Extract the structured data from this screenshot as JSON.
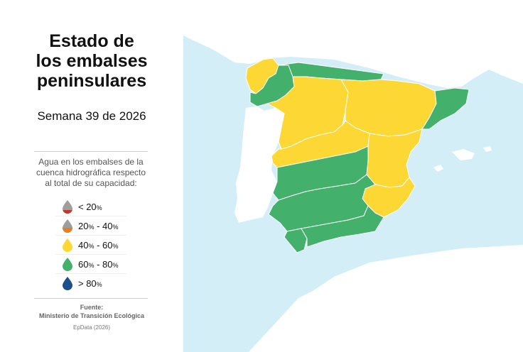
{
  "title": "Estado de\nlos embalses\npeninsulares",
  "subtitle": "Semana 39 de 2026",
  "legend_description": "Agua en los embalses de la cuenca hidrográfica respecto al total de su capacidad:",
  "legend": [
    {
      "main": "< 20",
      "unit": "%",
      "icon": "drop-icon",
      "top_color": "#9e9e9e",
      "bottom_color": "#c0392b",
      "fill_fraction": 0.3
    },
    {
      "main": "20",
      "unit": "%",
      "sep": " - ",
      "main2": "40",
      "unit2": "%",
      "icon": "drop-icon",
      "top_color": "#9e9e9e",
      "bottom_color": "#e67e22",
      "fill_fraction": 0.4
    },
    {
      "main": "40",
      "unit": "%",
      "sep": " - ",
      "main2": "60",
      "unit2": "%",
      "icon": "drop-icon",
      "top_color": "#fdd835",
      "bottom_color": "#fdd835",
      "fill_fraction": 1
    },
    {
      "main": "60",
      "unit": "%",
      "sep": " - ",
      "main2": "80",
      "unit2": "%",
      "icon": "drop-icon",
      "top_color": "#43b06c",
      "bottom_color": "#43b06c",
      "fill_fraction": 1
    },
    {
      "main": "> 80",
      "unit": "%",
      "icon": "drop-icon",
      "top_color": "#1f4e8c",
      "bottom_color": "#1f4e8c",
      "fill_fraction": 1
    }
  ],
  "source_title": "Fuente:",
  "source_name": "Ministerio de Transición Ecológica",
  "credit": "EpData (2026)",
  "colors": {
    "sea": "#d4eef7",
    "land_other": "#ffffff",
    "yellow": "#fdd835",
    "green": "#43b06c"
  },
  "map_regions": [
    {
      "name": "galicia-costa",
      "category": "40-60"
    },
    {
      "name": "mino-sil",
      "category": "60-80"
    },
    {
      "name": "cantabrico",
      "category": "60-80"
    },
    {
      "name": "duero",
      "category": "40-60"
    },
    {
      "name": "ebro",
      "category": "40-60"
    },
    {
      "name": "cataluna-interior",
      "category": "60-80"
    },
    {
      "name": "tajo",
      "category": "40-60"
    },
    {
      "name": "jucar",
      "category": "40-60"
    },
    {
      "name": "segura",
      "category": "40-60"
    },
    {
      "name": "guadiana",
      "category": "60-80"
    },
    {
      "name": "guadalquivir",
      "category": "60-80"
    },
    {
      "name": "andalucia-atlantica",
      "category": "60-80"
    },
    {
      "name": "andalucia-mediterranea",
      "category": "60-80"
    }
  ]
}
